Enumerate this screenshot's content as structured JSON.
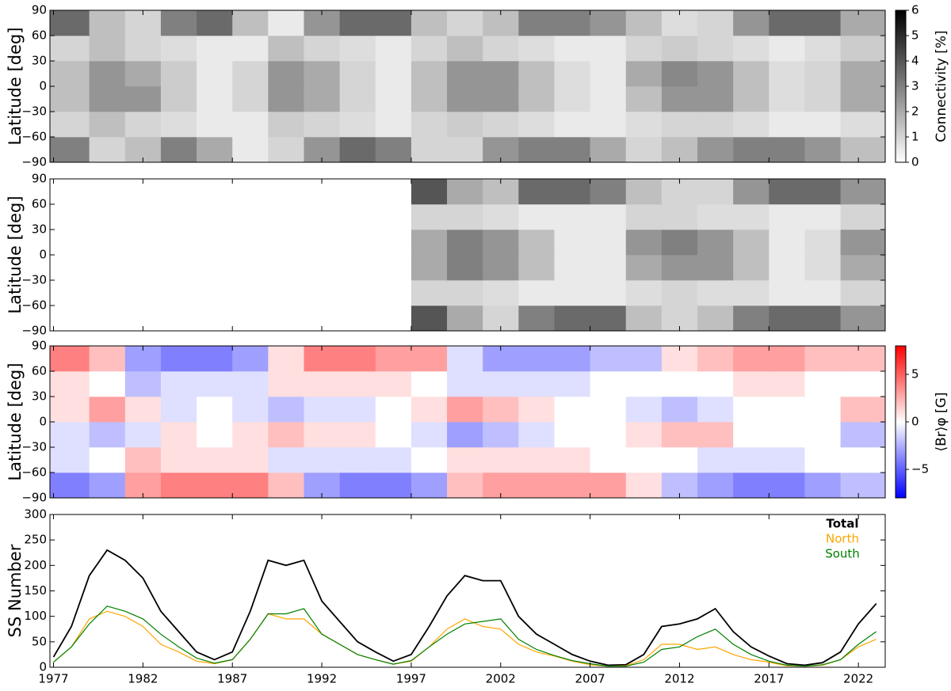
{
  "chart_data": [
    {
      "type": "heatmap",
      "ylabel": "Latitude [deg]",
      "cmap": "gray_r",
      "clim": [
        0,
        6
      ],
      "x_edges": [
        1976.8,
        1979,
        1981,
        1983,
        1985,
        1987,
        1989,
        1991,
        1993,
        1995,
        1997,
        1999,
        2001,
        2003,
        2005,
        2007,
        2009,
        2011,
        2013,
        2015,
        2017,
        2019,
        2021,
        2023.5
      ],
      "y_edges": [
        -90,
        -60,
        -30,
        0,
        30,
        60,
        90
      ],
      "z": [
        [
          3.0,
          1.0,
          1.5,
          3.0,
          2.0,
          0.5,
          1.0,
          2.5,
          3.5,
          3.0,
          1.0,
          1.0,
          2.5,
          3.0,
          3.0,
          2.0,
          1.0,
          1.5,
          2.5,
          3.0,
          3.0,
          2.5,
          1.5
        ],
        [
          1.0,
          1.5,
          1.0,
          0.8,
          0.5,
          0.5,
          1.2,
          1.0,
          0.8,
          0.5,
          1.0,
          1.2,
          1.0,
          0.8,
          0.5,
          0.5,
          0.8,
          1.0,
          1.0,
          0.8,
          0.5,
          0.5,
          0.8
        ],
        [
          1.5,
          2.5,
          2.5,
          1.2,
          0.5,
          1.0,
          2.5,
          2.0,
          1.0,
          0.5,
          1.5,
          2.5,
          2.5,
          1.5,
          0.8,
          0.5,
          1.5,
          2.5,
          2.5,
          1.5,
          0.8,
          1.0,
          2.0
        ],
        [
          1.5,
          2.5,
          2.0,
          1.2,
          0.5,
          1.0,
          2.5,
          2.0,
          1.0,
          0.5,
          1.5,
          2.5,
          2.5,
          1.5,
          0.8,
          0.5,
          2.0,
          2.8,
          2.5,
          1.5,
          0.8,
          1.0,
          2.0
        ],
        [
          1.0,
          1.5,
          1.0,
          0.8,
          0.5,
          0.5,
          1.5,
          1.0,
          0.8,
          0.5,
          1.0,
          1.5,
          1.0,
          0.8,
          0.5,
          0.5,
          1.0,
          1.2,
          1.0,
          0.8,
          0.5,
          0.8,
          1.2
        ],
        [
          3.5,
          1.5,
          1.0,
          3.0,
          3.5,
          1.5,
          0.5,
          2.5,
          3.5,
          3.5,
          1.5,
          1.0,
          1.5,
          3.0,
          3.0,
          2.5,
          1.5,
          0.8,
          1.0,
          2.5,
          3.5,
          3.5,
          2.0
        ]
      ],
      "xlim": [
        1976.8,
        2023.5
      ],
      "ylim": [
        -90,
        90
      ],
      "yticks": [
        {
          "value": -90,
          "label": "−90"
        },
        {
          "value": -60,
          "label": "−60"
        },
        {
          "value": -30,
          "label": "−30"
        },
        0,
        30,
        60,
        90
      ],
      "colorbar": {
        "label": "Connectivity [%]",
        "lim": [
          0,
          6
        ],
        "ticks": [
          0,
          1,
          2,
          3,
          4,
          5,
          6
        ]
      }
    },
    {
      "type": "heatmap",
      "ylabel": "Latitude [deg]",
      "cmap": "gray_r",
      "clim": [
        0,
        6
      ],
      "x_edges": [
        1976.8,
        1979,
        1981,
        1983,
        1985,
        1987,
        1989,
        1991,
        1993,
        1995,
        1997,
        1999,
        2001,
        2003,
        2005,
        2007,
        2009,
        2011,
        2013,
        2015,
        2017,
        2019,
        2021,
        2023.5
      ],
      "y_edges": [
        -90,
        -60,
        -30,
        0,
        30,
        60,
        90
      ],
      "z": [
        [
          null,
          null,
          null,
          null,
          null,
          null,
          null,
          null,
          null,
          null,
          4.0,
          2.0,
          1.0,
          3.0,
          3.5,
          3.5,
          1.5,
          1.0,
          1.5,
          3.0,
          3.5,
          3.5,
          2.5
        ],
        [
          null,
          null,
          null,
          null,
          null,
          null,
          null,
          null,
          null,
          null,
          1.0,
          1.0,
          0.8,
          0.5,
          0.5,
          0.5,
          0.8,
          1.0,
          0.8,
          0.8,
          0.5,
          0.5,
          1.0
        ],
        [
          null,
          null,
          null,
          null,
          null,
          null,
          null,
          null,
          null,
          null,
          2.0,
          3.0,
          2.5,
          1.5,
          0.5,
          0.5,
          2.0,
          2.5,
          2.5,
          1.5,
          0.5,
          0.8,
          2.0
        ],
        [
          null,
          null,
          null,
          null,
          null,
          null,
          null,
          null,
          null,
          null,
          2.0,
          3.0,
          2.5,
          1.5,
          0.5,
          0.5,
          2.5,
          3.0,
          2.5,
          1.5,
          0.5,
          0.8,
          2.5
        ],
        [
          null,
          null,
          null,
          null,
          null,
          null,
          null,
          null,
          null,
          null,
          1.0,
          1.0,
          0.8,
          0.5,
          0.5,
          0.5,
          1.0,
          1.0,
          0.8,
          0.8,
          0.5,
          0.5,
          1.0
        ],
        [
          null,
          null,
          null,
          null,
          null,
          null,
          null,
          null,
          null,
          null,
          4.0,
          2.0,
          1.5,
          3.5,
          3.5,
          3.0,
          1.5,
          1.0,
          1.0,
          2.5,
          3.5,
          3.5,
          2.5
        ]
      ],
      "xlim": [
        1976.8,
        2023.5
      ],
      "ylim": [
        -90,
        90
      ],
      "yticks": [
        {
          "value": -90,
          "label": "−90"
        },
        {
          "value": -60,
          "label": "−60"
        },
        {
          "value": -30,
          "label": "−30"
        },
        0,
        30,
        60,
        90
      ]
    },
    {
      "type": "heatmap",
      "ylabel": "Latitude [deg]",
      "cmap": "bwr",
      "clim": [
        -8,
        8
      ],
      "x_edges": [
        1976.8,
        1979,
        1981,
        1983,
        1985,
        1987,
        1989,
        1991,
        1993,
        1995,
        1997,
        1999,
        2001,
        2003,
        2005,
        2007,
        2009,
        2011,
        2013,
        2015,
        2017,
        2019,
        2021,
        2023.5
      ],
      "y_edges": [
        -90,
        -60,
        -30,
        0,
        30,
        60,
        90
      ],
      "z": [
        [
          -4,
          -3,
          3,
          4,
          4,
          4,
          2,
          -3,
          -4,
          -4,
          -3,
          2,
          3,
          3,
          3,
          3,
          1,
          -2,
          -3,
          -4,
          -4,
          -3,
          -2
        ],
        [
          -1,
          0,
          2,
          1,
          1,
          1,
          -1,
          -1,
          -1,
          -1,
          0,
          1,
          1,
          1,
          1,
          0,
          0,
          0,
          -1,
          -1,
          -1,
          0,
          0
        ],
        [
          -1,
          -2,
          -1,
          1,
          0,
          1,
          2,
          1,
          1,
          0,
          -1,
          -3,
          -2,
          -1,
          0,
          0,
          1,
          2,
          2,
          0,
          0,
          0,
          -2
        ],
        [
          1,
          3,
          1,
          -1,
          0,
          -1,
          -2,
          -1,
          -1,
          0,
          1,
          3,
          2,
          1,
          0,
          0,
          -1,
          -2,
          -1,
          0,
          0,
          0,
          2
        ],
        [
          1,
          0,
          -2,
          -1,
          -1,
          -1,
          1,
          1,
          1,
          1,
          0,
          -1,
          -1,
          -1,
          -1,
          0,
          0,
          0,
          0,
          1,
          1,
          0,
          0
        ],
        [
          4,
          2,
          -3,
          -4,
          -4,
          -3,
          1,
          4,
          4,
          3,
          3,
          -1,
          -3,
          -3,
          -3,
          -2,
          -2,
          1,
          2,
          3,
          3,
          2,
          2
        ]
      ],
      "xlim": [
        1976.8,
        2023.5
      ],
      "ylim": [
        -90,
        90
      ],
      "yticks": [
        {
          "value": -90,
          "label": "−90"
        },
        {
          "value": -60,
          "label": "−60"
        },
        {
          "value": -30,
          "label": "−30"
        },
        0,
        30,
        60,
        90
      ],
      "colorbar": {
        "label": "⟨Br⟩φ [G]",
        "lim": [
          -8,
          8
        ],
        "ticks": [
          {
            "value": -5,
            "label": "−5"
          },
          0,
          5
        ]
      }
    },
    {
      "type": "line",
      "ylabel": "SS Number",
      "x": [
        1977,
        1978,
        1979,
        1980,
        1981,
        1982,
        1983,
        1984,
        1985,
        1986,
        1987,
        1988,
        1989,
        1990,
        1991,
        1992,
        1993,
        1994,
        1995,
        1996,
        1997,
        1998,
        1999,
        2000,
        2001,
        2002,
        2003,
        2004,
        2005,
        2006,
        2007,
        2008,
        2009,
        2010,
        2011,
        2012,
        2013,
        2014,
        2015,
        2016,
        2017,
        2018,
        2019,
        2020,
        2021,
        2022,
        2023
      ],
      "series": [
        {
          "name": "Total",
          "color": "#000000",
          "values": [
            20,
            80,
            180,
            230,
            210,
            175,
            110,
            70,
            30,
            15,
            30,
            110,
            210,
            200,
            210,
            130,
            90,
            50,
            30,
            12,
            25,
            80,
            140,
            180,
            170,
            170,
            100,
            65,
            45,
            25,
            12,
            4,
            5,
            25,
            80,
            85,
            95,
            115,
            70,
            40,
            22,
            7,
            4,
            9,
            30,
            85,
            125
          ]
        },
        {
          "name": "North",
          "color": "#ffa500",
          "values": [
            10,
            40,
            95,
            110,
            100,
            80,
            45,
            30,
            12,
            7,
            15,
            55,
            105,
            95,
            95,
            65,
            45,
            25,
            15,
            6,
            12,
            40,
            75,
            95,
            80,
            75,
            45,
            30,
            22,
            12,
            5,
            2,
            3,
            15,
            45,
            45,
            35,
            40,
            25,
            15,
            10,
            3,
            2,
            4,
            15,
            40,
            55
          ]
        },
        {
          "name": "South",
          "color": "#008000",
          "values": [
            10,
            40,
            85,
            120,
            110,
            95,
            65,
            40,
            18,
            8,
            15,
            55,
            105,
            105,
            115,
            65,
            45,
            25,
            15,
            6,
            13,
            40,
            65,
            85,
            90,
            95,
            55,
            35,
            23,
            13,
            7,
            2,
            2,
            10,
            35,
            40,
            60,
            75,
            45,
            25,
            12,
            4,
            2,
            5,
            15,
            45,
            70
          ]
        }
      ],
      "xlim": [
        1976.8,
        2023.5
      ],
      "ylim": [
        0,
        300
      ],
      "xticks": [
        1977,
        1982,
        1987,
        1992,
        1997,
        2002,
        2007,
        2012,
        2017,
        2022
      ],
      "yticks": [
        0,
        50,
        100,
        150,
        200,
        250,
        300
      ]
    }
  ]
}
